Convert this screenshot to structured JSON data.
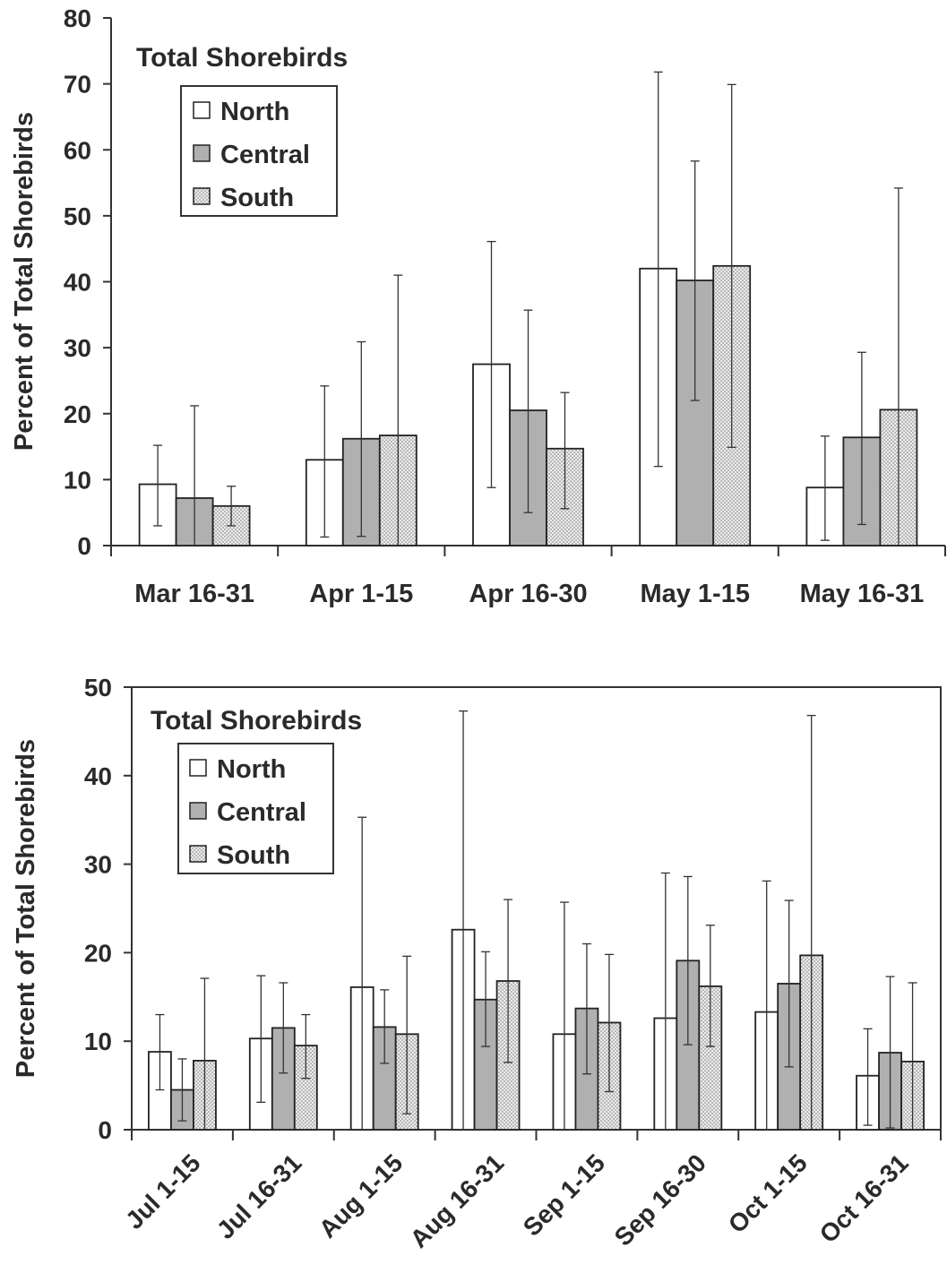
{
  "chart_data": [
    {
      "type": "bar",
      "title": "Total Shorebirds",
      "xlabel": "",
      "ylabel": "Percent of Total Shorebirds",
      "ylim": [
        0,
        80
      ],
      "yticks": [
        0,
        10,
        20,
        30,
        40,
        50,
        60,
        70,
        80
      ],
      "categories": [
        "Mar 16-31",
        "Apr 1-15",
        "Apr 16-30",
        "May 1-15",
        "May 16-31"
      ],
      "legend_position": "top-left",
      "grid": false,
      "series": [
        {
          "name": "North",
          "fill": "#ffffff",
          "pattern": "none",
          "values": [
            9.3,
            13.0,
            27.5,
            42.0,
            8.8
          ],
          "error_low": [
            3.0,
            1.3,
            8.8,
            12.0,
            0.8
          ],
          "error_high": [
            15.2,
            24.2,
            46.1,
            71.8,
            16.6
          ]
        },
        {
          "name": "Central",
          "fill": "#b0b0b0",
          "pattern": "none",
          "values": [
            7.2,
            16.2,
            20.5,
            40.2,
            16.4
          ],
          "error_low": [
            0,
            1.4,
            5.0,
            22.0,
            3.2
          ],
          "error_high": [
            21.2,
            30.9,
            35.7,
            58.3,
            29.3
          ]
        },
        {
          "name": "South",
          "fill": "#e6e6e6",
          "pattern": "dots",
          "values": [
            6.0,
            16.7,
            14.7,
            42.4,
            20.6
          ],
          "error_low": [
            3.0,
            0,
            5.6,
            14.9,
            0
          ],
          "error_high": [
            9.0,
            41.0,
            23.2,
            69.9,
            54.2
          ]
        }
      ]
    },
    {
      "type": "bar",
      "title": "Total Shorebirds",
      "xlabel": "",
      "ylabel": "Percent of Total Shorebirds",
      "ylim": [
        0,
        50
      ],
      "yticks": [
        0,
        10,
        20,
        30,
        40,
        50
      ],
      "categories": [
        "Jul 1-15",
        "Jul 16-31",
        "Aug 1-15",
        "Aug 16-31",
        "Sep 1-15",
        "Sep 16-30",
        "Oct 1-15",
        "Oct 16-31"
      ],
      "category_label_rotation": -45,
      "legend_position": "top-left",
      "grid": false,
      "series": [
        {
          "name": "North",
          "fill": "#ffffff",
          "pattern": "none",
          "values": [
            8.8,
            10.3,
            16.1,
            22.6,
            10.8,
            12.6,
            13.3,
            6.1
          ],
          "error_low": [
            4.5,
            3.1,
            0,
            0,
            0,
            0,
            0,
            0.5
          ],
          "error_high": [
            13.0,
            17.4,
            35.3,
            47.3,
            25.7,
            29.0,
            28.1,
            11.4
          ]
        },
        {
          "name": "Central",
          "fill": "#b0b0b0",
          "pattern": "none",
          "values": [
            4.5,
            11.5,
            11.6,
            14.7,
            13.7,
            19.1,
            16.5,
            8.7
          ],
          "error_low": [
            1.0,
            6.4,
            7.5,
            9.4,
            6.3,
            9.6,
            7.1,
            0.2
          ],
          "error_high": [
            8.0,
            16.6,
            15.8,
            20.1,
            21.0,
            28.6,
            25.9,
            17.3
          ]
        },
        {
          "name": "South",
          "fill": "#e6e6e6",
          "pattern": "dots",
          "values": [
            7.8,
            9.5,
            10.8,
            16.8,
            12.1,
            16.2,
            19.7,
            7.7
          ],
          "error_low": [
            0,
            5.8,
            1.8,
            7.6,
            4.3,
            9.4,
            0,
            0
          ],
          "error_high": [
            17.1,
            13.0,
            19.6,
            26.0,
            19.8,
            23.1,
            46.8,
            16.6
          ]
        }
      ]
    }
  ]
}
